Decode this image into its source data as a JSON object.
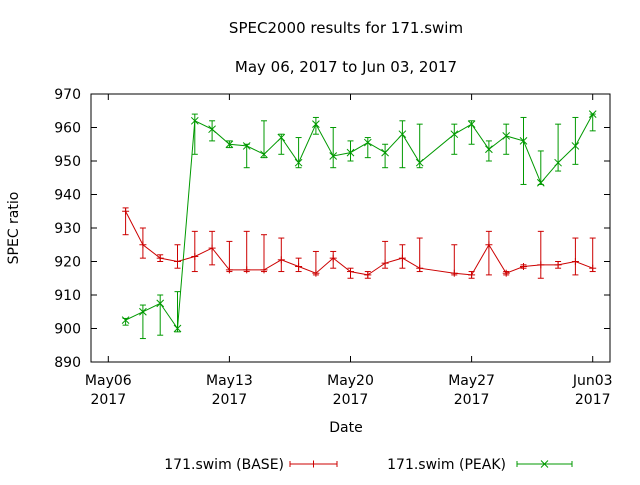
{
  "chart_data": {
    "type": "line",
    "title": "SPEC2000 results for 171.swim",
    "subtitle": "May 06, 2017 to Jun 03, 2017",
    "xlabel": "Date",
    "ylabel": "SPEC ratio",
    "xlim": [
      "2017-05-05",
      "2017-06-04"
    ],
    "ylim": [
      890,
      970
    ],
    "grid": false,
    "legend_position": "bottom",
    "x_ticks": [
      {
        "date": "2017-05-06",
        "line1": "May06",
        "line2": "2017"
      },
      {
        "date": "2017-05-13",
        "line1": "May13",
        "line2": "2017"
      },
      {
        "date": "2017-05-20",
        "line1": "May20",
        "line2": "2017"
      },
      {
        "date": "2017-05-27",
        "line1": "May27",
        "line2": "2017"
      },
      {
        "date": "2017-06-03",
        "line1": "Jun03",
        "line2": "2017"
      }
    ],
    "y_ticks": [
      890,
      900,
      910,
      920,
      930,
      940,
      950,
      960,
      970
    ],
    "series": [
      {
        "name": "171.swim (BASE)",
        "color": "#cc0000",
        "marker": "plus",
        "points": [
          {
            "x": "2017-05-07",
            "y": 935,
            "lo": 928,
            "hi": 936
          },
          {
            "x": "2017-05-08",
            "y": 925,
            "lo": 921,
            "hi": 930
          },
          {
            "x": "2017-05-09",
            "y": 921,
            "lo": 920,
            "hi": 922
          },
          {
            "x": "2017-05-10",
            "y": 920,
            "lo": 918,
            "hi": 925
          },
          {
            "x": "2017-05-11",
            "y": 921.5,
            "lo": 917,
            "hi": 929
          },
          {
            "x": "2017-05-12",
            "y": 924,
            "lo": 919,
            "hi": 929
          },
          {
            "x": "2017-05-13",
            "y": 917.5,
            "lo": 917,
            "hi": 926
          },
          {
            "x": "2017-05-14",
            "y": 917.5,
            "lo": 917,
            "hi": 929
          },
          {
            "x": "2017-05-15",
            "y": 917.5,
            "lo": 917,
            "hi": 928
          },
          {
            "x": "2017-05-16",
            "y": 920.5,
            "lo": 917,
            "hi": 927
          },
          {
            "x": "2017-05-17",
            "y": 918.5,
            "lo": 917,
            "hi": 921
          },
          {
            "x": "2017-05-18",
            "y": 916.5,
            "lo": 916,
            "hi": 923
          },
          {
            "x": "2017-05-19",
            "y": 921,
            "lo": 918,
            "hi": 923
          },
          {
            "x": "2017-05-20",
            "y": 917,
            "lo": 915,
            "hi": 918
          },
          {
            "x": "2017-05-21",
            "y": 916,
            "lo": 915,
            "hi": 917
          },
          {
            "x": "2017-05-22",
            "y": 919.5,
            "lo": 918,
            "hi": 926
          },
          {
            "x": "2017-05-23",
            "y": 921,
            "lo": 918,
            "hi": 925
          },
          {
            "x": "2017-05-24",
            "y": 918,
            "lo": 917,
            "hi": 927
          },
          {
            "x": "2017-05-26",
            "y": 916.5,
            "lo": 916,
            "hi": 925
          },
          {
            "x": "2017-05-27",
            "y": 916,
            "lo": 915,
            "hi": 917
          },
          {
            "x": "2017-05-28",
            "y": 925,
            "lo": 916,
            "hi": 929
          },
          {
            "x": "2017-05-29",
            "y": 916.5,
            "lo": 916,
            "hi": 917
          },
          {
            "x": "2017-05-30",
            "y": 918.5,
            "lo": 918,
            "hi": 919
          },
          {
            "x": "2017-05-31",
            "y": 919,
            "lo": 915,
            "hi": 929
          },
          {
            "x": "2017-06-01",
            "y": 919,
            "lo": 918,
            "hi": 920
          },
          {
            "x": "2017-06-02",
            "y": 920,
            "lo": 916,
            "hi": 927
          },
          {
            "x": "2017-06-03",
            "y": 918,
            "lo": 917,
            "hi": 927
          }
        ]
      },
      {
        "name": "171.swim (PEAK)",
        "color": "#009900",
        "marker": "cross",
        "points": [
          {
            "x": "2017-05-07",
            "y": 902.5,
            "lo": 901,
            "hi": 903
          },
          {
            "x": "2017-05-08",
            "y": 905,
            "lo": 897,
            "hi": 907
          },
          {
            "x": "2017-05-09",
            "y": 907.5,
            "lo": 898,
            "hi": 910
          },
          {
            "x": "2017-05-10",
            "y": 900,
            "lo": 899,
            "hi": 911
          },
          {
            "x": "2017-05-11",
            "y": 962,
            "lo": 952,
            "hi": 964
          },
          {
            "x": "2017-05-12",
            "y": 959.5,
            "lo": 956,
            "hi": 962
          },
          {
            "x": "2017-05-13",
            "y": 955,
            "lo": 954,
            "hi": 956
          },
          {
            "x": "2017-05-14",
            "y": 954.5,
            "lo": 948,
            "hi": 955
          },
          {
            "x": "2017-05-15",
            "y": 952,
            "lo": 951,
            "hi": 962
          },
          {
            "x": "2017-05-16",
            "y": 957,
            "lo": 952,
            "hi": 958
          },
          {
            "x": "2017-05-17",
            "y": 949.5,
            "lo": 948,
            "hi": 957
          },
          {
            "x": "2017-05-18",
            "y": 961,
            "lo": 958,
            "hi": 963
          },
          {
            "x": "2017-05-19",
            "y": 951.5,
            "lo": 948,
            "hi": 960
          },
          {
            "x": "2017-05-20",
            "y": 952.5,
            "lo": 950,
            "hi": 956
          },
          {
            "x": "2017-05-21",
            "y": 955.5,
            "lo": 951,
            "hi": 957
          },
          {
            "x": "2017-05-22",
            "y": 952.5,
            "lo": 948,
            "hi": 955
          },
          {
            "x": "2017-05-23",
            "y": 958,
            "lo": 948,
            "hi": 962
          },
          {
            "x": "2017-05-24",
            "y": 949.5,
            "lo": 948,
            "hi": 961
          },
          {
            "x": "2017-05-26",
            "y": 958,
            "lo": 952,
            "hi": 961
          },
          {
            "x": "2017-05-27",
            "y": 961,
            "lo": 955,
            "hi": 962
          },
          {
            "x": "2017-05-28",
            "y": 953.5,
            "lo": 950,
            "hi": 956
          },
          {
            "x": "2017-05-29",
            "y": 957.5,
            "lo": 952,
            "hi": 961
          },
          {
            "x": "2017-05-30",
            "y": 956,
            "lo": 943,
            "hi": 963
          },
          {
            "x": "2017-05-31",
            "y": 943.5,
            "lo": 943,
            "hi": 953
          },
          {
            "x": "2017-06-01",
            "y": 949.5,
            "lo": 947,
            "hi": 961
          },
          {
            "x": "2017-06-02",
            "y": 954.5,
            "lo": 949,
            "hi": 963
          },
          {
            "x": "2017-06-03",
            "y": 964,
            "lo": 959,
            "hi": 964
          }
        ]
      }
    ]
  }
}
